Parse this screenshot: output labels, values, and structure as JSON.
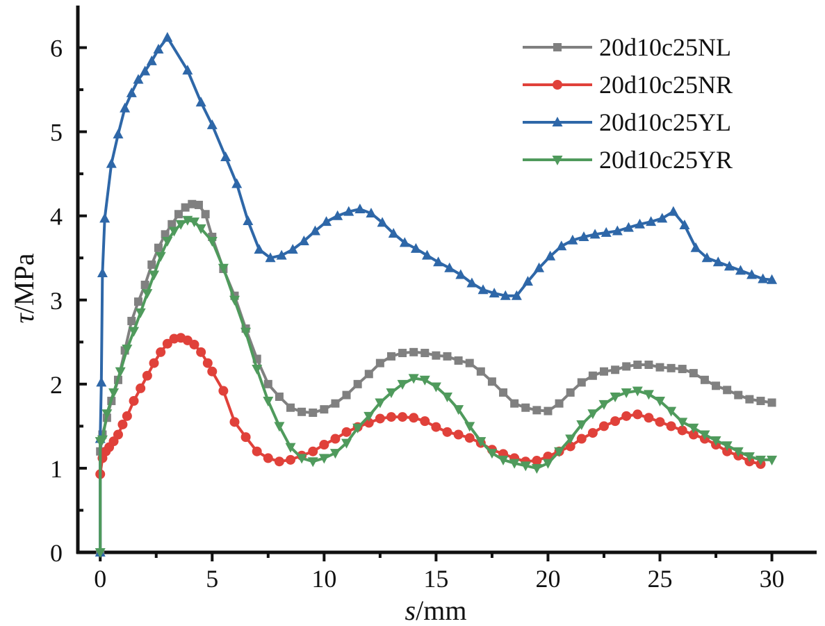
{
  "chart_data": {
    "type": "line",
    "title": "",
    "xlabel": {
      "italic": "s",
      "rest": "/mm"
    },
    "ylabel": {
      "italic": "τ",
      "rest": "/MPa"
    },
    "xlim": [
      -1,
      32
    ],
    "ylim": [
      0,
      6.5
    ],
    "xticks": [
      0,
      5,
      10,
      15,
      20,
      25,
      30
    ],
    "xtick_labels": [
      "0",
      "5",
      "10",
      "15",
      "20",
      "25",
      "30"
    ],
    "yticks": [
      0,
      1,
      2,
      3,
      4,
      5,
      6
    ],
    "ytick_labels": [
      "0",
      "1",
      "2",
      "3",
      "4",
      "5",
      "6"
    ],
    "grid": false,
    "legend_position": "top-right",
    "series": [
      {
        "name": "20d10c25NL",
        "color": "#808080",
        "marker": "square",
        "points": [
          [
            0,
            0
          ],
          [
            0,
            1.2
          ],
          [
            0.1,
            1.4
          ],
          [
            0.3,
            1.6
          ],
          [
            0.5,
            1.8
          ],
          [
            0.8,
            2.05
          ],
          [
            1.1,
            2.4
          ],
          [
            1.4,
            2.75
          ],
          [
            1.7,
            2.98
          ],
          [
            2.0,
            3.18
          ],
          [
            2.3,
            3.42
          ],
          [
            2.6,
            3.62
          ],
          [
            2.9,
            3.78
          ],
          [
            3.2,
            3.9
          ],
          [
            3.5,
            4.02
          ],
          [
            3.8,
            4.1
          ],
          [
            4.1,
            4.14
          ],
          [
            4.4,
            4.13
          ],
          [
            4.7,
            4.02
          ],
          [
            5.0,
            3.75
          ],
          [
            5.5,
            3.37
          ],
          [
            6.0,
            3.05
          ],
          [
            6.5,
            2.66
          ],
          [
            7.0,
            2.3
          ],
          [
            7.5,
            2.0
          ],
          [
            8.0,
            1.85
          ],
          [
            8.5,
            1.72
          ],
          [
            9.0,
            1.67
          ],
          [
            9.5,
            1.66
          ],
          [
            10.0,
            1.7
          ],
          [
            10.5,
            1.77
          ],
          [
            11.0,
            1.87
          ],
          [
            11.5,
            2.0
          ],
          [
            12.0,
            2.12
          ],
          [
            12.5,
            2.25
          ],
          [
            13.0,
            2.33
          ],
          [
            13.5,
            2.37
          ],
          [
            14.0,
            2.38
          ],
          [
            14.5,
            2.37
          ],
          [
            15.0,
            2.34
          ],
          [
            15.5,
            2.33
          ],
          [
            16.0,
            2.28
          ],
          [
            16.5,
            2.25
          ],
          [
            17.0,
            2.15
          ],
          [
            17.5,
            2.03
          ],
          [
            18.0,
            1.9
          ],
          [
            18.5,
            1.77
          ],
          [
            19.0,
            1.72
          ],
          [
            19.5,
            1.69
          ],
          [
            20.0,
            1.68
          ],
          [
            20.5,
            1.77
          ],
          [
            21.0,
            1.9
          ],
          [
            21.5,
            2.02
          ],
          [
            22.0,
            2.1
          ],
          [
            22.5,
            2.15
          ],
          [
            23.0,
            2.17
          ],
          [
            23.5,
            2.21
          ],
          [
            24.0,
            2.23
          ],
          [
            24.5,
            2.23
          ],
          [
            25.0,
            2.2
          ],
          [
            25.5,
            2.19
          ],
          [
            26.0,
            2.18
          ],
          [
            26.5,
            2.13
          ],
          [
            27.0,
            2.05
          ],
          [
            27.5,
            1.98
          ],
          [
            28.0,
            1.93
          ],
          [
            28.5,
            1.87
          ],
          [
            29.0,
            1.82
          ],
          [
            29.5,
            1.8
          ],
          [
            30.0,
            1.78
          ]
        ]
      },
      {
        "name": "20d10c25NR",
        "color": "#E0413A",
        "marker": "circle",
        "points": [
          [
            0,
            0.93
          ],
          [
            0.1,
            1.12
          ],
          [
            0.25,
            1.2
          ],
          [
            0.4,
            1.25
          ],
          [
            0.6,
            1.32
          ],
          [
            0.8,
            1.4
          ],
          [
            1.0,
            1.52
          ],
          [
            1.2,
            1.62
          ],
          [
            1.5,
            1.8
          ],
          [
            1.8,
            1.95
          ],
          [
            2.1,
            2.1
          ],
          [
            2.4,
            2.25
          ],
          [
            2.7,
            2.38
          ],
          [
            3.0,
            2.48
          ],
          [
            3.3,
            2.54
          ],
          [
            3.6,
            2.55
          ],
          [
            3.9,
            2.52
          ],
          [
            4.2,
            2.47
          ],
          [
            4.5,
            2.38
          ],
          [
            4.8,
            2.25
          ],
          [
            5.0,
            2.15
          ],
          [
            5.5,
            1.92
          ],
          [
            6.0,
            1.55
          ],
          [
            6.5,
            1.37
          ],
          [
            7.0,
            1.2
          ],
          [
            7.5,
            1.12
          ],
          [
            8.0,
            1.08
          ],
          [
            8.5,
            1.1
          ],
          [
            9.0,
            1.15
          ],
          [
            9.5,
            1.2
          ],
          [
            10.0,
            1.28
          ],
          [
            10.5,
            1.35
          ],
          [
            11.0,
            1.43
          ],
          [
            11.5,
            1.49
          ],
          [
            12.0,
            1.54
          ],
          [
            12.5,
            1.59
          ],
          [
            13.0,
            1.61
          ],
          [
            13.5,
            1.61
          ],
          [
            14.0,
            1.6
          ],
          [
            14.5,
            1.56
          ],
          [
            15.0,
            1.49
          ],
          [
            15.5,
            1.43
          ],
          [
            16.0,
            1.4
          ],
          [
            16.5,
            1.36
          ],
          [
            17.0,
            1.3
          ],
          [
            17.5,
            1.22
          ],
          [
            18.0,
            1.17
          ],
          [
            18.5,
            1.12
          ],
          [
            19.0,
            1.08
          ],
          [
            19.5,
            1.09
          ],
          [
            20.0,
            1.14
          ],
          [
            20.5,
            1.2
          ],
          [
            21.0,
            1.26
          ],
          [
            21.5,
            1.35
          ],
          [
            22.0,
            1.42
          ],
          [
            22.5,
            1.5
          ],
          [
            23.0,
            1.56
          ],
          [
            23.5,
            1.62
          ],
          [
            24.0,
            1.64
          ],
          [
            24.5,
            1.6
          ],
          [
            25.0,
            1.55
          ],
          [
            25.5,
            1.5
          ],
          [
            26.0,
            1.45
          ],
          [
            26.5,
            1.4
          ],
          [
            27.0,
            1.35
          ],
          [
            27.5,
            1.28
          ],
          [
            28.0,
            1.2
          ],
          [
            28.5,
            1.15
          ],
          [
            29.0,
            1.08
          ],
          [
            29.5,
            1.05
          ]
        ]
      },
      {
        "name": "20d10c25YL",
        "color": "#2E67A8",
        "marker": "triangle-up",
        "points": [
          [
            0,
            0
          ],
          [
            0,
            1.35
          ],
          [
            0.05,
            2.02
          ],
          [
            0.1,
            3.32
          ],
          [
            0.2,
            3.97
          ],
          [
            0.5,
            4.62
          ],
          [
            0.8,
            4.97
          ],
          [
            1.1,
            5.28
          ],
          [
            1.4,
            5.46
          ],
          [
            1.7,
            5.62
          ],
          [
            2.0,
            5.72
          ],
          [
            2.3,
            5.84
          ],
          [
            2.6,
            5.98
          ],
          [
            3.0,
            6.12
          ],
          [
            3.9,
            5.73
          ],
          [
            4.5,
            5.35
          ],
          [
            5.0,
            5.08
          ],
          [
            5.6,
            4.7
          ],
          [
            6.1,
            4.38
          ],
          [
            6.6,
            3.94
          ],
          [
            7.1,
            3.6
          ],
          [
            7.6,
            3.5
          ],
          [
            8.1,
            3.53
          ],
          [
            8.6,
            3.6
          ],
          [
            9.1,
            3.7
          ],
          [
            9.6,
            3.82
          ],
          [
            10.1,
            3.93
          ],
          [
            10.6,
            4.0
          ],
          [
            11.1,
            4.05
          ],
          [
            11.6,
            4.08
          ],
          [
            12.1,
            4.03
          ],
          [
            12.6,
            3.92
          ],
          [
            13.1,
            3.79
          ],
          [
            13.6,
            3.68
          ],
          [
            14.1,
            3.61
          ],
          [
            14.6,
            3.53
          ],
          [
            15.1,
            3.45
          ],
          [
            15.6,
            3.38
          ],
          [
            16.1,
            3.3
          ],
          [
            16.6,
            3.2
          ],
          [
            17.1,
            3.12
          ],
          [
            17.6,
            3.08
          ],
          [
            18.1,
            3.05
          ],
          [
            18.6,
            3.05
          ],
          [
            19.1,
            3.22
          ],
          [
            19.6,
            3.38
          ],
          [
            20.1,
            3.52
          ],
          [
            20.6,
            3.64
          ],
          [
            21.1,
            3.71
          ],
          [
            21.6,
            3.75
          ],
          [
            22.1,
            3.78
          ],
          [
            22.6,
            3.8
          ],
          [
            23.1,
            3.82
          ],
          [
            23.6,
            3.86
          ],
          [
            24.1,
            3.9
          ],
          [
            24.6,
            3.93
          ],
          [
            25.1,
            3.97
          ],
          [
            25.6,
            4.05
          ],
          [
            26.1,
            3.89
          ],
          [
            26.6,
            3.62
          ],
          [
            27.1,
            3.5
          ],
          [
            27.6,
            3.45
          ],
          [
            28.1,
            3.4
          ],
          [
            28.6,
            3.35
          ],
          [
            29.1,
            3.3
          ],
          [
            29.6,
            3.25
          ],
          [
            30.0,
            3.24
          ]
        ]
      },
      {
        "name": "20d10c25YR",
        "color": "#4F9A5C",
        "marker": "triangle-down",
        "points": [
          [
            0,
            0
          ],
          [
            0,
            1.32
          ],
          [
            0.1,
            1.34
          ],
          [
            0.3,
            1.65
          ],
          [
            0.6,
            1.9
          ],
          [
            0.9,
            2.15
          ],
          [
            1.2,
            2.42
          ],
          [
            1.5,
            2.63
          ],
          [
            1.8,
            2.85
          ],
          [
            2.1,
            3.08
          ],
          [
            2.4,
            3.3
          ],
          [
            2.7,
            3.52
          ],
          [
            3.0,
            3.7
          ],
          [
            3.3,
            3.82
          ],
          [
            3.6,
            3.9
          ],
          [
            3.9,
            3.95
          ],
          [
            4.2,
            3.93
          ],
          [
            4.5,
            3.85
          ],
          [
            5.0,
            3.7
          ],
          [
            5.5,
            3.38
          ],
          [
            6.0,
            3.0
          ],
          [
            6.5,
            2.62
          ],
          [
            7.0,
            2.18
          ],
          [
            7.5,
            1.8
          ],
          [
            8.0,
            1.5
          ],
          [
            8.5,
            1.25
          ],
          [
            9.0,
            1.12
          ],
          [
            9.5,
            1.08
          ],
          [
            10.0,
            1.12
          ],
          [
            10.5,
            1.18
          ],
          [
            11.0,
            1.3
          ],
          [
            11.5,
            1.48
          ],
          [
            12.0,
            1.62
          ],
          [
            12.5,
            1.78
          ],
          [
            13.0,
            1.9
          ],
          [
            13.5,
            2.0
          ],
          [
            14.0,
            2.07
          ],
          [
            14.5,
            2.05
          ],
          [
            15.0,
            1.97
          ],
          [
            15.5,
            1.85
          ],
          [
            16.0,
            1.7
          ],
          [
            16.5,
            1.5
          ],
          [
            17.0,
            1.32
          ],
          [
            17.5,
            1.18
          ],
          [
            18.0,
            1.1
          ],
          [
            18.5,
            1.06
          ],
          [
            19.0,
            1.03
          ],
          [
            19.5,
            1.0
          ],
          [
            20.0,
            1.06
          ],
          [
            20.5,
            1.2
          ],
          [
            21.0,
            1.35
          ],
          [
            21.5,
            1.52
          ],
          [
            22.0,
            1.65
          ],
          [
            22.5,
            1.76
          ],
          [
            23.0,
            1.85
          ],
          [
            23.5,
            1.9
          ],
          [
            24.0,
            1.92
          ],
          [
            24.5,
            1.88
          ],
          [
            25.0,
            1.8
          ],
          [
            25.5,
            1.68
          ],
          [
            26.0,
            1.55
          ],
          [
            26.5,
            1.48
          ],
          [
            27.0,
            1.4
          ],
          [
            27.5,
            1.33
          ],
          [
            28.0,
            1.27
          ],
          [
            28.5,
            1.2
          ],
          [
            29.0,
            1.14
          ],
          [
            29.5,
            1.1
          ],
          [
            30.0,
            1.1
          ]
        ]
      }
    ]
  }
}
